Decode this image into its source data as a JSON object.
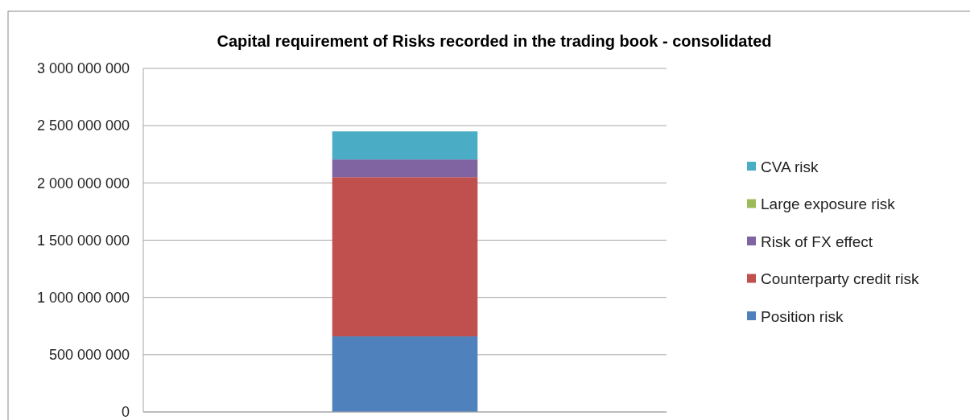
{
  "chart_data": {
    "type": "bar",
    "title": "Capital requirement of Risks recorded in the trading book - consolidated",
    "categories": [
      null
    ],
    "stacked": true,
    "legend": "right",
    "grid": "y",
    "ylim": [
      0,
      3000000000
    ],
    "yticks": [
      {
        "value": 0,
        "label": "0"
      },
      {
        "value": 500000000,
        "label": "500 000 000"
      },
      {
        "value": 1000000000,
        "label": "1 000 000 000"
      },
      {
        "value": 1500000000,
        "label": "1 500 000 000"
      },
      {
        "value": 2000000000,
        "label": "2 000 000 000"
      },
      {
        "value": 2500000000,
        "label": "2 500 000 000"
      },
      {
        "value": 3000000000,
        "label": "3 000 000 000"
      }
    ],
    "series": [
      {
        "name": "Position risk",
        "color": "#4f81bd",
        "values": [
          660000000
        ]
      },
      {
        "name": "Counterparty credit risk",
        "color": "#c0504d",
        "values": [
          1390000000
        ]
      },
      {
        "name": "Risk of FX effect",
        "color": "#8064a2",
        "values": [
          155000000
        ]
      },
      {
        "name": "Large exposure risk",
        "color": "#9bbb59",
        "values": [
          0
        ]
      },
      {
        "name": "CVA risk",
        "color": "#4bacc6",
        "values": [
          245000000
        ]
      }
    ]
  }
}
